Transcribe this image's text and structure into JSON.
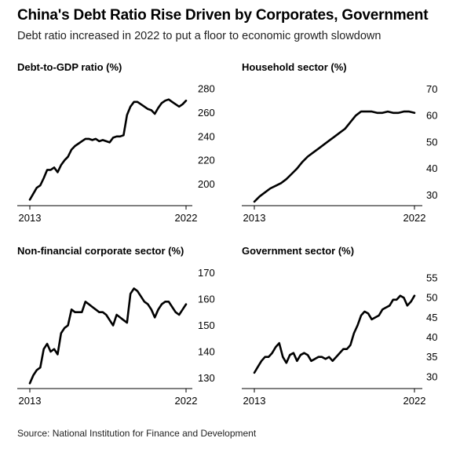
{
  "header": {
    "title": "China's Debt Ratio Rise Driven by Corporates, Government",
    "subtitle": "Debt ratio increased in 2022 to put a floor to economic growth slowdown"
  },
  "footer": {
    "source": "Source: National Institution for Finance and Development"
  },
  "colors": {
    "line": "#000000",
    "axis": "#000000",
    "text": "#000000"
  },
  "chart_data": [
    {
      "type": "line",
      "title": "Debt-to-GDP ratio (%)",
      "xlabel": "",
      "ylabel": "",
      "xlim": [
        2013,
        2022.3
      ],
      "ylim": [
        182,
        282
      ],
      "yticks": [
        200,
        220,
        240,
        260,
        280
      ],
      "xticks": [
        "2013",
        "2022"
      ],
      "grid": false,
      "series": [
        {
          "x": [
            2013.0,
            2013.2,
            2013.4,
            2013.6,
            2013.8,
            2014.0,
            2014.2,
            2014.4,
            2014.6,
            2014.8,
            2015.0,
            2015.2,
            2015.4,
            2015.6,
            2015.8,
            2016.0,
            2016.2,
            2016.4,
            2016.6,
            2016.8,
            2017.0,
            2017.2,
            2017.4,
            2017.6,
            2017.8,
            2018.0,
            2018.2,
            2018.4,
            2018.6,
            2018.8,
            2019.0,
            2019.2,
            2019.4,
            2019.6,
            2019.8,
            2020.0,
            2020.2,
            2020.4,
            2020.6,
            2020.8,
            2021.0,
            2021.2,
            2021.4,
            2021.6,
            2021.8,
            2022.0
          ],
          "values": [
            187,
            192,
            197,
            199,
            205,
            212,
            212,
            214,
            210,
            216,
            220,
            223,
            229,
            232,
            234,
            236,
            238,
            238,
            237,
            238,
            236,
            237,
            236,
            235,
            239,
            240,
            240,
            241,
            258,
            265,
            269,
            269,
            267,
            265,
            263,
            262,
            259,
            264,
            268,
            270,
            271,
            269,
            267,
            265,
            267,
            270
          ]
        }
      ]
    },
    {
      "type": "line",
      "title": "Household sector (%)",
      "xlabel": "",
      "ylabel": "",
      "xlim": [
        2013,
        2022.3
      ],
      "ylim": [
        26,
        71
      ],
      "yticks": [
        30,
        40,
        50,
        60,
        70
      ],
      "xticks": [
        "2013",
        "2022"
      ],
      "grid": false,
      "series": [
        {
          "x": [
            2013.0,
            2013.3,
            2013.6,
            2013.9,
            2014.2,
            2014.5,
            2014.8,
            2015.1,
            2015.4,
            2015.7,
            2016.0,
            2016.3,
            2016.6,
            2016.9,
            2017.2,
            2017.5,
            2017.8,
            2018.1,
            2018.4,
            2018.7,
            2019.0,
            2019.3,
            2019.6,
            2019.9,
            2020.2,
            2020.5,
            2020.8,
            2021.1,
            2021.4,
            2021.7,
            2022.0
          ],
          "values": [
            27.5,
            29.5,
            31,
            32.5,
            33.5,
            34.5,
            36,
            38,
            40,
            42.5,
            44.5,
            46,
            47.5,
            49,
            50.5,
            52,
            53.5,
            55,
            57.5,
            60,
            61.5,
            61.5,
            61.5,
            61,
            61,
            61.5,
            61,
            61,
            61.5,
            61.5,
            61
          ]
        }
      ]
    },
    {
      "type": "line",
      "title": "Non-financial corporate sector (%)",
      "xlabel": "",
      "ylabel": "",
      "xlim": [
        2013,
        2022.3
      ],
      "ylim": [
        126,
        171
      ],
      "yticks": [
        130,
        140,
        150,
        160,
        170
      ],
      "xticks": [
        "2013",
        "2022"
      ],
      "grid": false,
      "series": [
        {
          "x": [
            2013.0,
            2013.2,
            2013.4,
            2013.6,
            2013.8,
            2014.0,
            2014.2,
            2014.4,
            2014.6,
            2014.8,
            2015.0,
            2015.2,
            2015.4,
            2015.6,
            2015.8,
            2016.0,
            2016.2,
            2016.4,
            2016.6,
            2016.8,
            2017.0,
            2017.2,
            2017.4,
            2017.6,
            2017.8,
            2018.0,
            2018.2,
            2018.4,
            2018.6,
            2018.8,
            2019.0,
            2019.2,
            2019.4,
            2019.6,
            2019.8,
            2020.0,
            2020.2,
            2020.4,
            2020.6,
            2020.8,
            2021.0,
            2021.2,
            2021.4,
            2021.6,
            2021.8,
            2022.0
          ],
          "values": [
            128,
            131,
            133,
            134,
            141,
            143,
            140,
            141,
            139,
            147,
            149,
            150,
            156,
            155,
            155,
            155,
            159,
            158,
            157,
            156,
            155,
            155,
            154,
            152,
            150,
            154,
            153,
            152,
            151,
            162,
            164,
            163,
            161,
            159,
            158,
            156,
            153,
            156,
            158,
            159,
            159,
            157,
            155,
            154,
            156,
            158
          ]
        }
      ]
    },
    {
      "type": "line",
      "title": "Government sector (%)",
      "xlabel": "",
      "ylabel": "",
      "xlim": [
        2013,
        2022.3
      ],
      "ylim": [
        27,
        57
      ],
      "yticks": [
        30,
        35,
        40,
        45,
        50,
        55
      ],
      "xticks": [
        "2013",
        "2022"
      ],
      "grid": false,
      "series": [
        {
          "x": [
            2013.0,
            2013.2,
            2013.4,
            2013.6,
            2013.8,
            2014.0,
            2014.2,
            2014.4,
            2014.6,
            2014.8,
            2015.0,
            2015.2,
            2015.4,
            2015.6,
            2015.8,
            2016.0,
            2016.2,
            2016.4,
            2016.6,
            2016.8,
            2017.0,
            2017.2,
            2017.4,
            2017.6,
            2017.8,
            2018.0,
            2018.2,
            2018.4,
            2018.6,
            2018.8,
            2019.0,
            2019.2,
            2019.4,
            2019.6,
            2019.8,
            2020.0,
            2020.2,
            2020.4,
            2020.6,
            2020.8,
            2021.0,
            2021.2,
            2021.4,
            2021.6,
            2021.8,
            2022.0
          ],
          "values": [
            31,
            32.5,
            34,
            35,
            35,
            36,
            37.5,
            38.5,
            35,
            33.5,
            35.5,
            36,
            34,
            35.5,
            36,
            35.5,
            34,
            34.5,
            35,
            35,
            34.5,
            35,
            34,
            35,
            36,
            37,
            37,
            38,
            41,
            43,
            45.5,
            46.5,
            46,
            44.5,
            45,
            45.5,
            47,
            47.5,
            48,
            49.5,
            49.5,
            50.5,
            50,
            48,
            49,
            50.5
          ]
        }
      ]
    }
  ]
}
